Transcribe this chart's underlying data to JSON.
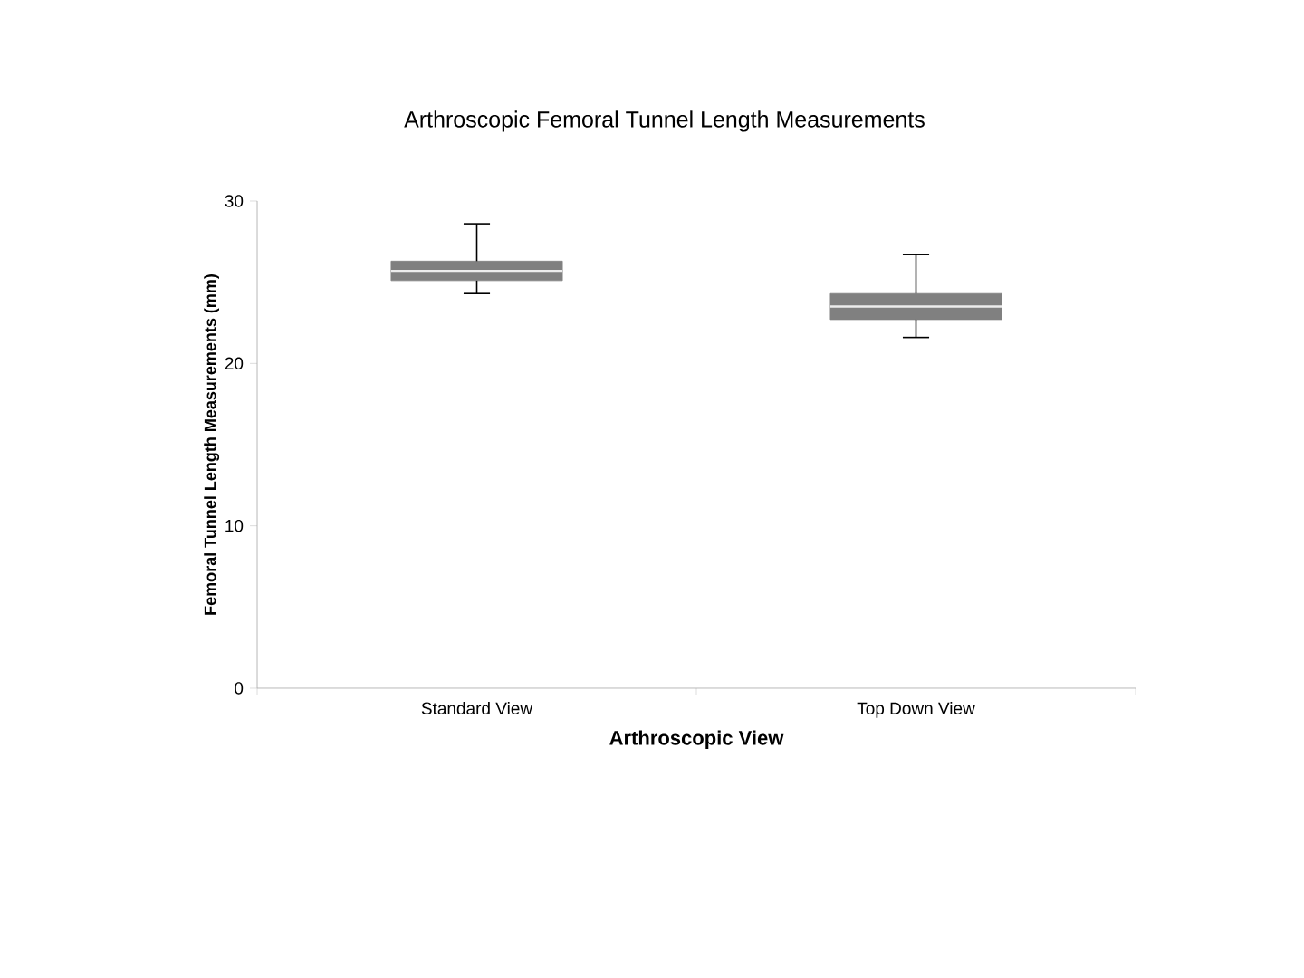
{
  "chart_data": {
    "type": "box",
    "title": "Arthroscopic Femoral Tunnel Length Measurements",
    "xlabel": "Arthroscopic View",
    "ylabel": "Femoral Tunnel Length Measurements (mm)",
    "categories": [
      "Standard View",
      "Top Down View"
    ],
    "boxes": [
      {
        "low": 24.3,
        "q1": 25.1,
        "median": 25.7,
        "q3": 26.3,
        "high": 28.6
      },
      {
        "low": 21.6,
        "q1": 22.7,
        "median": 23.5,
        "q3": 24.3,
        "high": 26.7
      }
    ],
    "color": "#808080",
    "ylim": [
      0,
      30
    ],
    "yticks": [
      0,
      10,
      20,
      30
    ],
    "grid": false
  }
}
